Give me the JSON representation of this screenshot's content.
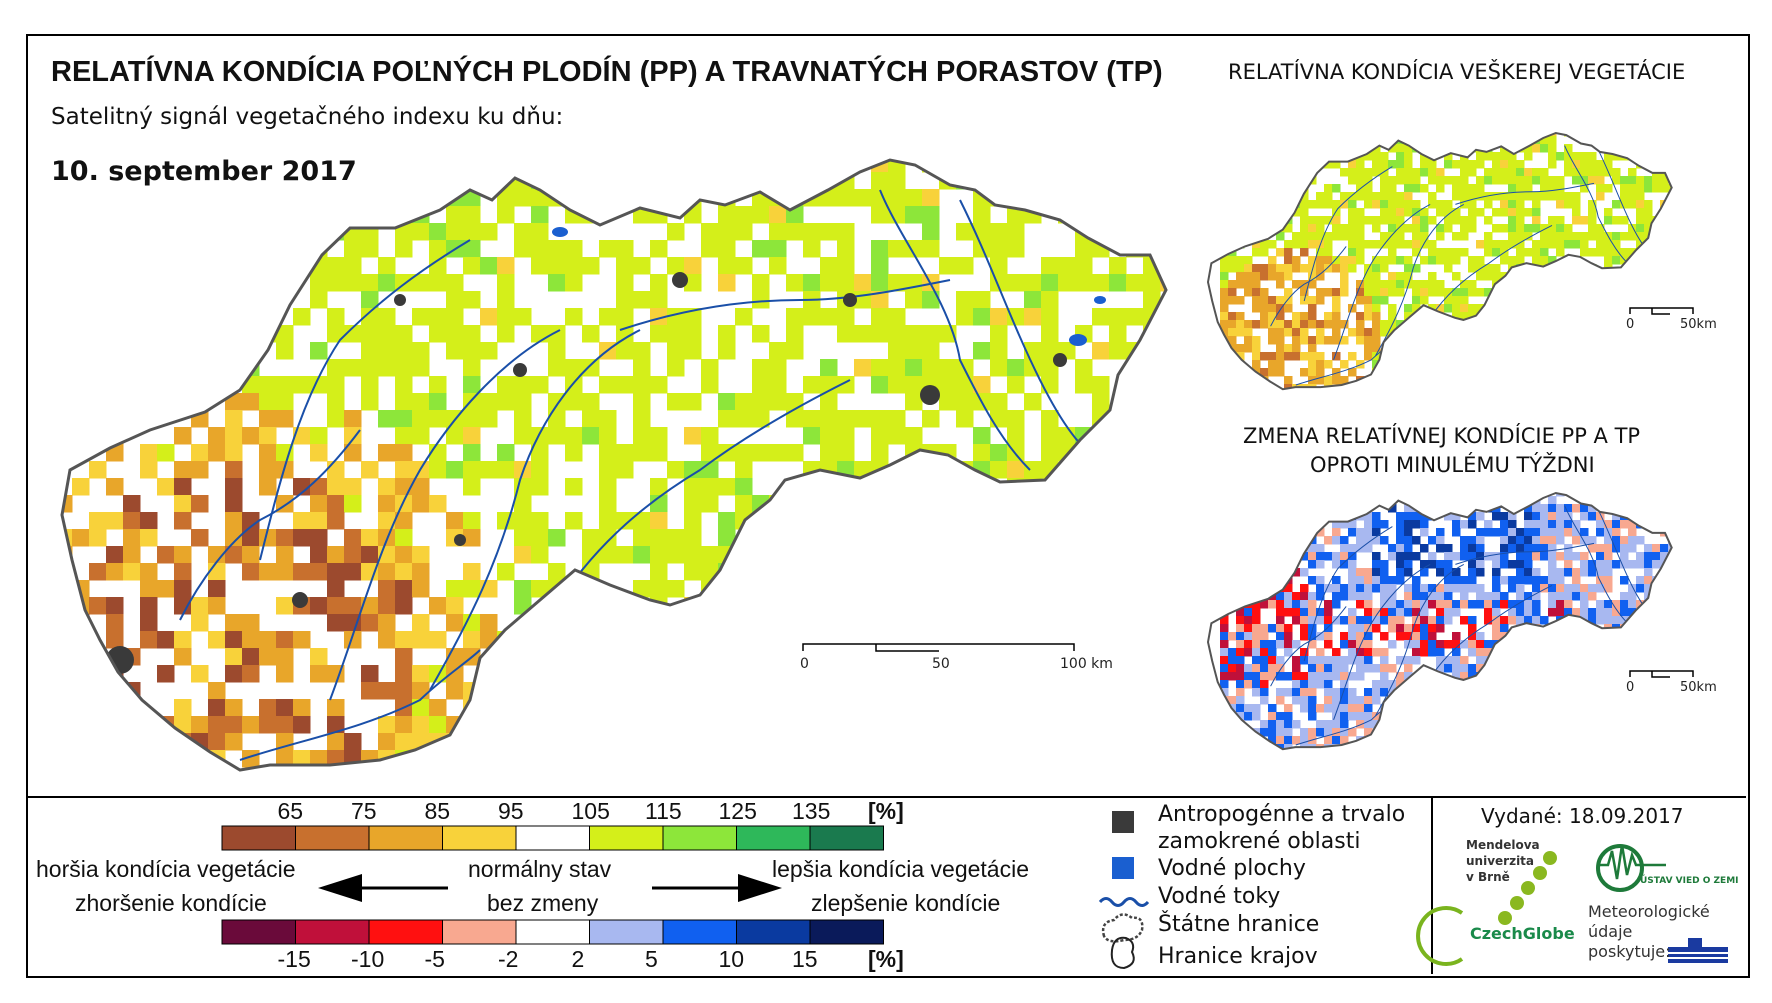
{
  "header": {
    "title": "RELATÍVNA KONDÍCIA POĽNÝCH PLODÍN (PP) A TRAVNATÝCH PORASTOV (TP)",
    "subtitle": "Satelitný signál vegetačného indexu ku dňu:",
    "date": "10. september 2017"
  },
  "inset_top": {
    "title": "RELATÍVNA KONDÍCIA VEŠKEREJ VEGETÁCIE",
    "scale": {
      "zero": "0",
      "end": "50km"
    }
  },
  "inset_bottom": {
    "title_line1": "ZMENA RELATÍVNEJ KONDÍCIE PP A TP",
    "title_line2": "OPROTI MINULÉMU TÝŽDNI",
    "scale": {
      "zero": "0",
      "end": "50km"
    }
  },
  "main_scale": {
    "zero": "0",
    "mid": "50",
    "end": "100 km"
  },
  "condition_scale": {
    "ticks": [
      "65",
      "75",
      "85",
      "95",
      "105",
      "115",
      "125",
      "135"
    ],
    "unit": "[%]",
    "colors": [
      "#9c4a2e",
      "#c8702e",
      "#e8a62a",
      "#f8d23a",
      "#ffffff",
      "#d4ef1a",
      "#8de63a",
      "#2eb85a",
      "#1a7a4e"
    ]
  },
  "change_scale": {
    "ticks": [
      "-15",
      "-10",
      "-5",
      "-2",
      "2",
      "5",
      "10",
      "15"
    ],
    "unit": "[%]",
    "colors": [
      "#6a0a3a",
      "#c0103a",
      "#ff1010",
      "#f8a890",
      "#ffffff",
      "#a8b8f0",
      "#1060f0",
      "#0a3aa0",
      "#0a1a5a"
    ]
  },
  "arrows": {
    "left_top": "horšia kondícia vegetácie",
    "left_bottom": "zhoršenie kondície",
    "center_top": "normálny stav",
    "center_bottom": "bez zmeny",
    "right_top": "lepšia kondícia vegetácie",
    "right_bottom": "zlepšenie kondície"
  },
  "map_legend": {
    "anthropogenic": [
      "Antropogénne a trvalo",
      "zamokrené oblasti"
    ],
    "water_areas": "Vodné plochy",
    "rivers": "Vodné toky",
    "state_border": "Štátne hranice",
    "region_border": "Hranice krajov"
  },
  "issued": "Vydané: 18.09.2017",
  "logos": {
    "mendel": [
      "Mendelova",
      "univerzita",
      "v Brně"
    ],
    "czechglobe": "CzechGlobe",
    "ustav": "ÚSTAV VIED O ZEMI",
    "meteo": [
      "Meteorologické",
      "údaje",
      "poskytuje:"
    ],
    "shmu": "SHMÚ"
  },
  "colors": {
    "border": "#555555",
    "river": "#1a4fa8",
    "water": "#1a5fd0",
    "anthropo": "#3a3a3a"
  }
}
